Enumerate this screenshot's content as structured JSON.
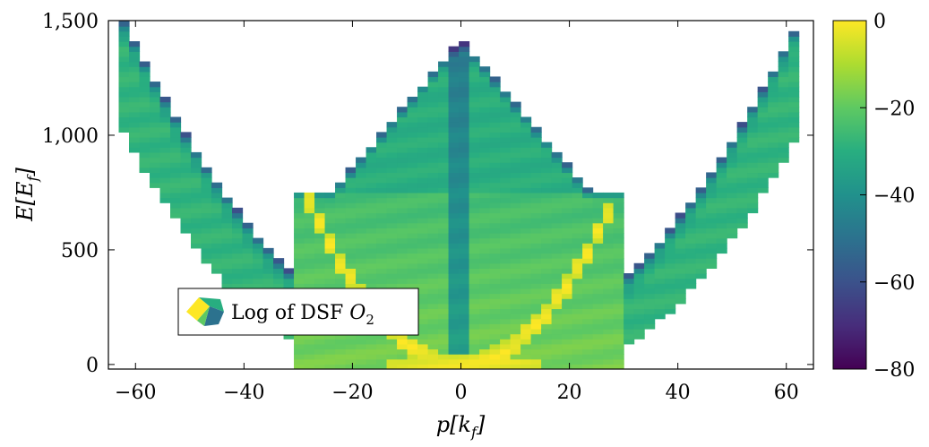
{
  "chart_data": {
    "type": "heatmap",
    "title": "",
    "xlabel": "p[k_f]",
    "ylabel": "E[E_f]",
    "xlim": [
      -65,
      65
    ],
    "ylim": [
      -20,
      1500
    ],
    "x_ticks": [
      "−60",
      "−40",
      "−20",
      "0",
      "20",
      "40",
      "60"
    ],
    "x_tick_values": [
      -60,
      -40,
      -20,
      0,
      20,
      40,
      60
    ],
    "y_ticks": [
      "0",
      "500",
      "1,000",
      "1,500"
    ],
    "y_tick_values": [
      0,
      500,
      1000,
      1500
    ],
    "colorbar": {
      "range": [
        -80,
        0
      ],
      "ticks": [
        "0",
        "−20",
        "−40",
        "−60",
        "−80"
      ],
      "tick_values": [
        0,
        -20,
        -40,
        -60,
        -80
      ],
      "colormap": "viridis"
    },
    "legend": {
      "label": "Log of DSF O₂",
      "position": "lower-left"
    },
    "grid": false,
    "features": {
      "outer_band": {
        "description": "quadratic continuum edge",
        "E_at_p60": 1450,
        "E_at_p30": 760
      },
      "inner_peak_branch": {
        "p_range": [
          -28,
          28
        ],
        "E_max": 740,
        "value": 0
      },
      "central_cone_top": 1420,
      "flat_shelf": {
        "E": 760,
        "p_range": [
          -30,
          -20
        ]
      }
    }
  }
}
